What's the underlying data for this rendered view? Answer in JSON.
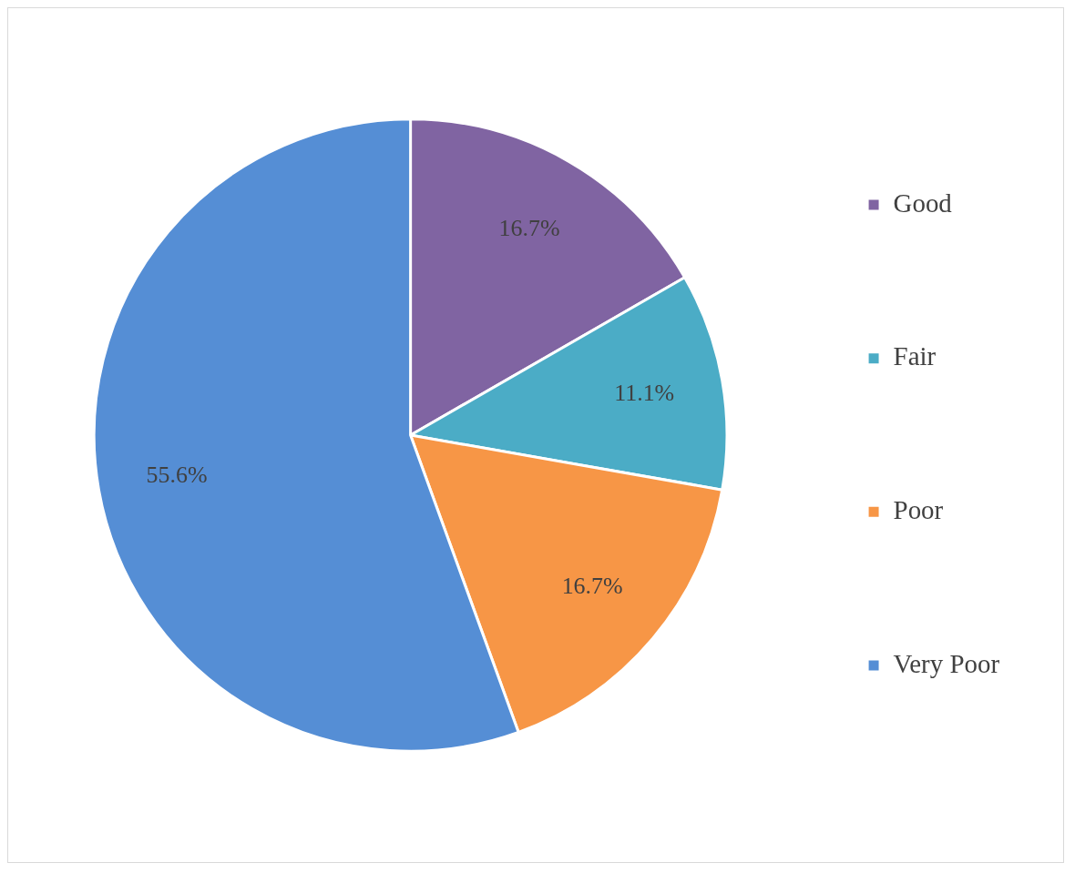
{
  "chart_data": {
    "type": "pie",
    "categories": [
      "Good",
      "Fair",
      "Poor",
      "Very Poor"
    ],
    "values": [
      16.7,
      11.1,
      16.7,
      55.6
    ],
    "colors": [
      "#8064a2",
      "#4bacc6",
      "#f79646",
      "#558ed5"
    ],
    "value_labels": [
      "16.7%",
      "11.1%",
      "16.7%",
      "55.6%"
    ],
    "legend": "right"
  }
}
